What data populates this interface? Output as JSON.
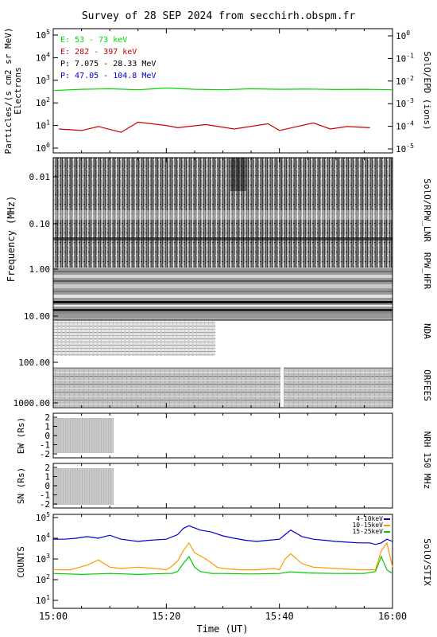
{
  "title": "Survey of 28 SEP 2024 from secchirh.obspm.fr",
  "xlabel": "Time (UT)",
  "x_ticks": [
    "15:00",
    "15:20",
    "15:40",
    "16:00"
  ],
  "x_range_minutes": [
    0,
    60
  ],
  "colors": {
    "electron_low": "#00dd00",
    "electron_high": "#cc0000",
    "proton_low": "#000000",
    "proton_high": "#0000cc",
    "stix_4_10": "#0000cc",
    "stix_10_15": "#ff9900",
    "stix_15_25": "#00cc00"
  },
  "panels": {
    "epd": {
      "ylabel": "Particles/(s cm2 sr MeV)",
      "ylabel2": "Electrons",
      "right_label": "SolO/EPD (ions)",
      "yticks_left": [
        "10^0",
        "10^1",
        "10^2",
        "10^3",
        "10^4",
        "10^5"
      ],
      "yticks_right": [
        "10^-5",
        "10^-4",
        "10^-3",
        "10^-2",
        "10^-1",
        "10^0"
      ],
      "legend": [
        {
          "text": "E: 53 - 73 keV",
          "color": "#00dd00"
        },
        {
          "text": "E: 282 - 397 keV",
          "color": "#cc0000"
        },
        {
          "text": "P: 7.075 - 28.33 MeV",
          "color": "#000000"
        },
        {
          "text": "P: 47.05 - 104.8 MeV",
          "color": "#0000cc"
        }
      ]
    },
    "radio": {
      "ylabel": "Frequency (MHz)",
      "ticks_top": [
        "0.01",
        "0.10",
        "1.00",
        "10.00"
      ],
      "ticks_bottom": [
        "10.00",
        "100.00",
        "1000.00"
      ],
      "instruments": [
        "SolO/RPW_LNR",
        "RPW_HFR",
        "NDA",
        "ORFEES"
      ]
    },
    "nrh": {
      "ylabel_ew": "EW (Rs)",
      "ylabel_sn": "SN (Rs)",
      "yticks": [
        "2",
        "1",
        "0",
        "-1",
        "-2"
      ],
      "right_label": "NRH 150 MHz"
    },
    "stix": {
      "ylabel": "COUNTS",
      "right_label": "SolO/STIX",
      "yticks": [
        "10^1",
        "10^2",
        "10^3",
        "10^4",
        "10^5"
      ],
      "legend": [
        {
          "text": "4-10keV",
          "color": "#0000cc"
        },
        {
          "text": "10-15keV",
          "color": "#ff9900"
        },
        {
          "text": "15-25keV",
          "color": "#00cc00"
        }
      ]
    }
  },
  "chart_data": [
    {
      "type": "line",
      "title": "SolO/EPD",
      "ylabel": "Particles/(s cm2 sr MeV)",
      "yscale": "log",
      "ylim": [
        0.5,
        100000
      ],
      "x_unit": "minutes after 15:00 UT",
      "series": [
        {
          "name": "E: 53 - 73 keV",
          "x": [
            0,
            5,
            10,
            15,
            20,
            25,
            30,
            35,
            40,
            45,
            50,
            55,
            60
          ],
          "values": [
            350,
            400,
            420,
            380,
            450,
            400,
            380,
            420,
            400,
            410,
            390,
            400,
            380
          ]
        },
        {
          "name": "E: 282 - 397 keV",
          "x": [
            1,
            5,
            8,
            12,
            15,
            20,
            22,
            27,
            32,
            38,
            40,
            46,
            49,
            52,
            56
          ],
          "values": [
            7,
            6,
            9,
            5,
            14,
            10,
            8,
            11,
            7,
            12,
            6,
            13,
            7,
            9,
            8
          ]
        }
      ]
    },
    {
      "type": "line",
      "title": "SolO/STIX",
      "ylabel": "COUNTS",
      "yscale": "log",
      "ylim": [
        1,
        100000
      ],
      "x_unit": "minutes after 15:00 UT",
      "series": [
        {
          "name": "4-10keV",
          "x": [
            0,
            2,
            4,
            6,
            8,
            10,
            12,
            15,
            17,
            20,
            22,
            23,
            24,
            26,
            28,
            30,
            32,
            34,
            36,
            38,
            40,
            41,
            42,
            44,
            46,
            48,
            50,
            52,
            54,
            56,
            57,
            58,
            59,
            60
          ],
          "values": [
            9000,
            9000,
            10000,
            12000,
            10000,
            14000,
            9000,
            7000,
            8000,
            9000,
            15000,
            30000,
            40000,
            25000,
            20000,
            13000,
            10000,
            8000,
            7000,
            8000,
            9000,
            15000,
            25000,
            12000,
            9000,
            8000,
            7000,
            6500,
            6000,
            6000,
            5000,
            6000,
            9000,
            7000
          ]
        },
        {
          "name": "10-15keV",
          "x": [
            0,
            3,
            6,
            8,
            10,
            12,
            15,
            18,
            20,
            21,
            22,
            23,
            24,
            25,
            27,
            29,
            30,
            33,
            36,
            39,
            40,
            41,
            42,
            44,
            46,
            50,
            54,
            57,
            58,
            59,
            60
          ],
          "values": [
            300,
            300,
            500,
            900,
            400,
            350,
            400,
            350,
            300,
            450,
            800,
            2500,
            6000,
            2000,
            1000,
            400,
            350,
            300,
            300,
            350,
            300,
            1000,
            1800,
            600,
            400,
            350,
            300,
            300,
            2500,
            6000,
            400
          ]
        },
        {
          "name": "15-25keV",
          "x": [
            0,
            5,
            10,
            15,
            20,
            21,
            22,
            23,
            24,
            25,
            26,
            28,
            30,
            35,
            40,
            42,
            45,
            50,
            55,
            57,
            58,
            59,
            60
          ],
          "values": [
            200,
            180,
            200,
            180,
            200,
            200,
            250,
            600,
            1300,
            400,
            250,
            200,
            200,
            190,
            200,
            240,
            210,
            200,
            200,
            250,
            1300,
            300,
            200
          ]
        }
      ]
    }
  ]
}
